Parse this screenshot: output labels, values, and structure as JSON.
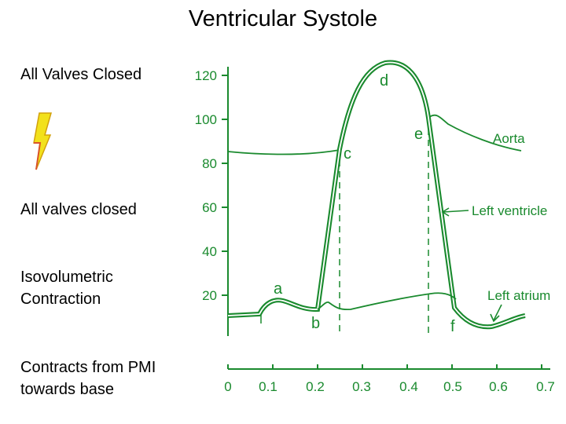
{
  "title": "Ventricular Systole",
  "left_panel": {
    "line1": "All Valves Closed",
    "icon": "lightning-bolt-icon",
    "line2": "All valves closed",
    "line3a": "Isovolumetric",
    "line3b": "Contraction",
    "line4a": "Contracts from PMI",
    "line4b": "towards base"
  },
  "figure": {
    "y_ticks": [
      "120",
      "100",
      "80",
      "60",
      "40",
      "20"
    ],
    "x_ticks": [
      "0",
      "0.1",
      "0.2",
      "0.3",
      "0.4",
      "0.5",
      "0.6",
      "0.7"
    ],
    "points": {
      "a": "a",
      "b": "b",
      "c": "c",
      "d": "d",
      "e": "e",
      "f": "f"
    },
    "curve_labels": {
      "aorta": "Aorta",
      "left_ventricle": "Left ventricle",
      "left_atrium": "Left atrium"
    },
    "color": "#1a8a2e"
  }
}
